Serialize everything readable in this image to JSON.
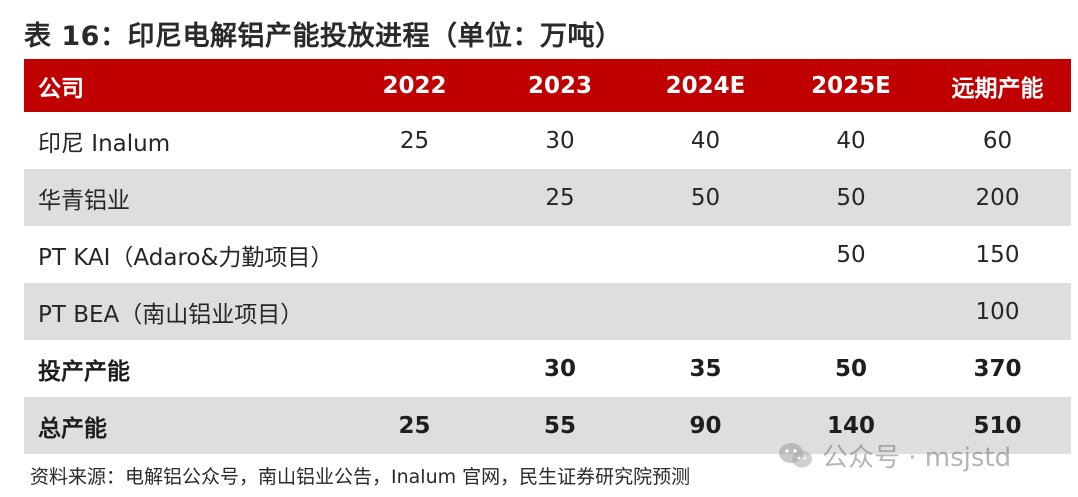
{
  "title": "表 16：印尼电解铝产能投放进程（单位：万吨）",
  "table": {
    "headers": [
      "公司",
      "2022",
      "2023",
      "2024E",
      "2025E",
      "远期产能"
    ],
    "rows": [
      {
        "cells": [
          "印尼 Inalum",
          "25",
          "30",
          "40",
          "40",
          "60"
        ]
      },
      {
        "cells": [
          "华青铝业",
          "",
          "25",
          "50",
          "50",
          "200"
        ]
      },
      {
        "cells": [
          "PT KAI（Adaro&力勤项目）",
          "",
          "",
          "",
          "50",
          "150"
        ]
      },
      {
        "cells": [
          "PT BEA（南山铝业项目）",
          "",
          "",
          "",
          "",
          "100"
        ]
      },
      {
        "cells": [
          "投产产能",
          "",
          "30",
          "35",
          "50",
          "370"
        ]
      },
      {
        "cells": [
          "总产能",
          "25",
          "55",
          "90",
          "140",
          "510"
        ]
      }
    ]
  },
  "source": "资料来源：电解铝公众号，南山铝业公告，Inalum 官网，民生证券研究院预测",
  "watermark": {
    "text": "公众号 · msjstd",
    "icon": "wechat-icon"
  },
  "colors": {
    "header_bg": "#c00000",
    "header_text": "#ffffff",
    "shade_row": "#dedede"
  }
}
